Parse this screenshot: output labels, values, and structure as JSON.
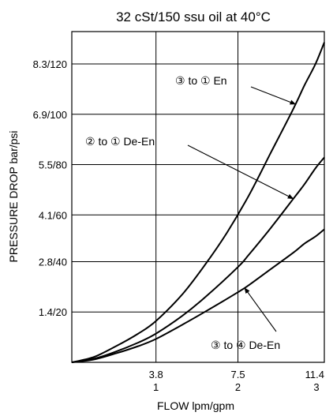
{
  "chart_data": {
    "type": "line",
    "title": "32 cSt/150 ssu oil at 40°C",
    "xlabel": "FLOW lpm/gpm",
    "ylabel": "PRESSURE DROP bar/psi",
    "xlim": [
      0,
      11.4
    ],
    "ylim": [
      0,
      9.2
    ],
    "grid": true,
    "x_ticks": [
      {
        "value": 3.8,
        "label_top": "3.8",
        "label_bottom": "1"
      },
      {
        "value": 7.5,
        "label_top": "7.5",
        "label_bottom": "2"
      },
      {
        "value": 11.4,
        "label_top": "11.4",
        "label_bottom": "3"
      }
    ],
    "y_ticks": [
      {
        "value": 1.4,
        "label": "1.4/20"
      },
      {
        "value": 2.8,
        "label": "2.8/40"
      },
      {
        "value": 4.1,
        "label": "4.1/60"
      },
      {
        "value": 5.5,
        "label": "5.5/80"
      },
      {
        "value": 6.9,
        "label": "6.9/100"
      },
      {
        "value": 8.3,
        "label": "8.3/120"
      }
    ],
    "series": [
      {
        "name": "③ to ① En",
        "points": [
          [
            0,
            0
          ],
          [
            1,
            0.15
          ],
          [
            2,
            0.45
          ],
          [
            3,
            0.8
          ],
          [
            3.8,
            1.15
          ],
          [
            5,
            1.9
          ],
          [
            6,
            2.7
          ],
          [
            7,
            3.6
          ],
          [
            8,
            4.65
          ],
          [
            9,
            5.85
          ],
          [
            10,
            7.05
          ],
          [
            10.5,
            7.7
          ],
          [
            11,
            8.3
          ],
          [
            11.4,
            8.9
          ]
        ]
      },
      {
        "name": "② to ① De-En",
        "points": [
          [
            0,
            0
          ],
          [
            1,
            0.1
          ],
          [
            2,
            0.3
          ],
          [
            3,
            0.55
          ],
          [
            3.8,
            0.8
          ],
          [
            5,
            1.3
          ],
          [
            6,
            1.8
          ],
          [
            7.5,
            2.65
          ],
          [
            8,
            3.0
          ],
          [
            9,
            3.75
          ],
          [
            10,
            4.55
          ],
          [
            10.5,
            4.95
          ],
          [
            11,
            5.4
          ],
          [
            11.4,
            5.7
          ]
        ]
      },
      {
        "name": "③ to ④ De-En",
        "points": [
          [
            0,
            0
          ],
          [
            1,
            0.08
          ],
          [
            2,
            0.25
          ],
          [
            3,
            0.45
          ],
          [
            3.8,
            0.65
          ],
          [
            5,
            1.05
          ],
          [
            6,
            1.4
          ],
          [
            7.5,
            1.95
          ],
          [
            8,
            2.15
          ],
          [
            9,
            2.6
          ],
          [
            10,
            3.05
          ],
          [
            10.5,
            3.3
          ],
          [
            11,
            3.5
          ],
          [
            11.4,
            3.7
          ]
        ]
      }
    ],
    "annotations": [
      {
        "text": "③ to ① En",
        "series": 0,
        "at_x": 10.1
      },
      {
        "text": "② to ① De-En",
        "series": 1,
        "at_x": 10.0
      },
      {
        "text": "③ to ④ De-En",
        "series": 2,
        "at_x": 7.8
      }
    ]
  }
}
